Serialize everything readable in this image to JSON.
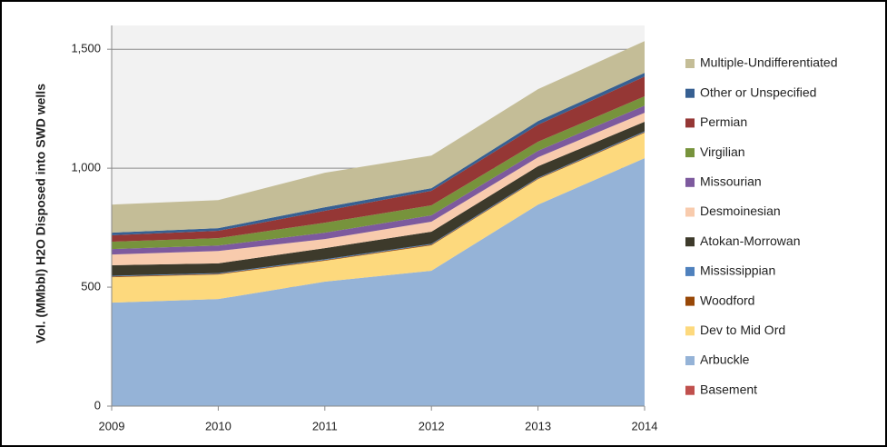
{
  "chart_data": {
    "type": "stacked-area",
    "y_label": "Vol. (MMbbl) H2O Disposed into SWD wells",
    "categories": [
      "2009",
      "2010",
      "2011",
      "2012",
      "2013",
      "2014"
    ],
    "ylim": [
      0,
      1600
    ],
    "yticks": [
      0,
      500,
      {
        "value": 1000,
        "label": "1,000"
      },
      {
        "value": 1500,
        "label": "1,500"
      }
    ],
    "grid": true,
    "series": [
      {
        "name": "Basement",
        "color": "#c0504d",
        "values": [
          2,
          2,
          2,
          2,
          2,
          2
        ]
      },
      {
        "name": "Arbuckle",
        "color": "#95b3d7",
        "values": [
          433,
          448,
          521,
          567,
          845,
          1040
        ]
      },
      {
        "name": "Dev to Mid Ord",
        "color": "#fdd97d",
        "values": [
          107,
          103,
          88,
          107,
          107,
          107
        ]
      },
      {
        "name": "Woodford",
        "color": "#984807",
        "values": [
          3,
          3,
          3,
          3,
          3,
          3
        ]
      },
      {
        "name": "Mississippian",
        "color": "#4f81bd",
        "values": [
          3,
          3,
          3,
          3,
          3,
          3
        ]
      },
      {
        "name": "Atokan-Morrowan",
        "color": "#3d3a2b",
        "values": [
          44,
          41,
          47,
          51,
          48,
          40
        ]
      },
      {
        "name": "Desmoinesian",
        "color": "#f8cbad",
        "values": [
          45,
          52,
          38,
          42,
          38,
          38
        ]
      },
      {
        "name": "Missourian",
        "color": "#7d5a9e",
        "values": [
          23,
          23,
          27,
          27,
          27,
          30
        ]
      },
      {
        "name": "Virgilian",
        "color": "#77933c",
        "values": [
          31,
          31,
          42,
          42,
          38,
          39
        ]
      },
      {
        "name": "Permian",
        "color": "#953735",
        "values": [
          27,
          31,
          50,
          61,
          72,
          83
        ]
      },
      {
        "name": "Other or Unspecified",
        "color": "#376092",
        "values": [
          11,
          11,
          15,
          11,
          15,
          16
        ]
      },
      {
        "name": "Multiple-Undifferentiated",
        "color": "#c4bd97",
        "values": [
          118,
          118,
          145,
          137,
          134,
          133
        ]
      }
    ]
  }
}
